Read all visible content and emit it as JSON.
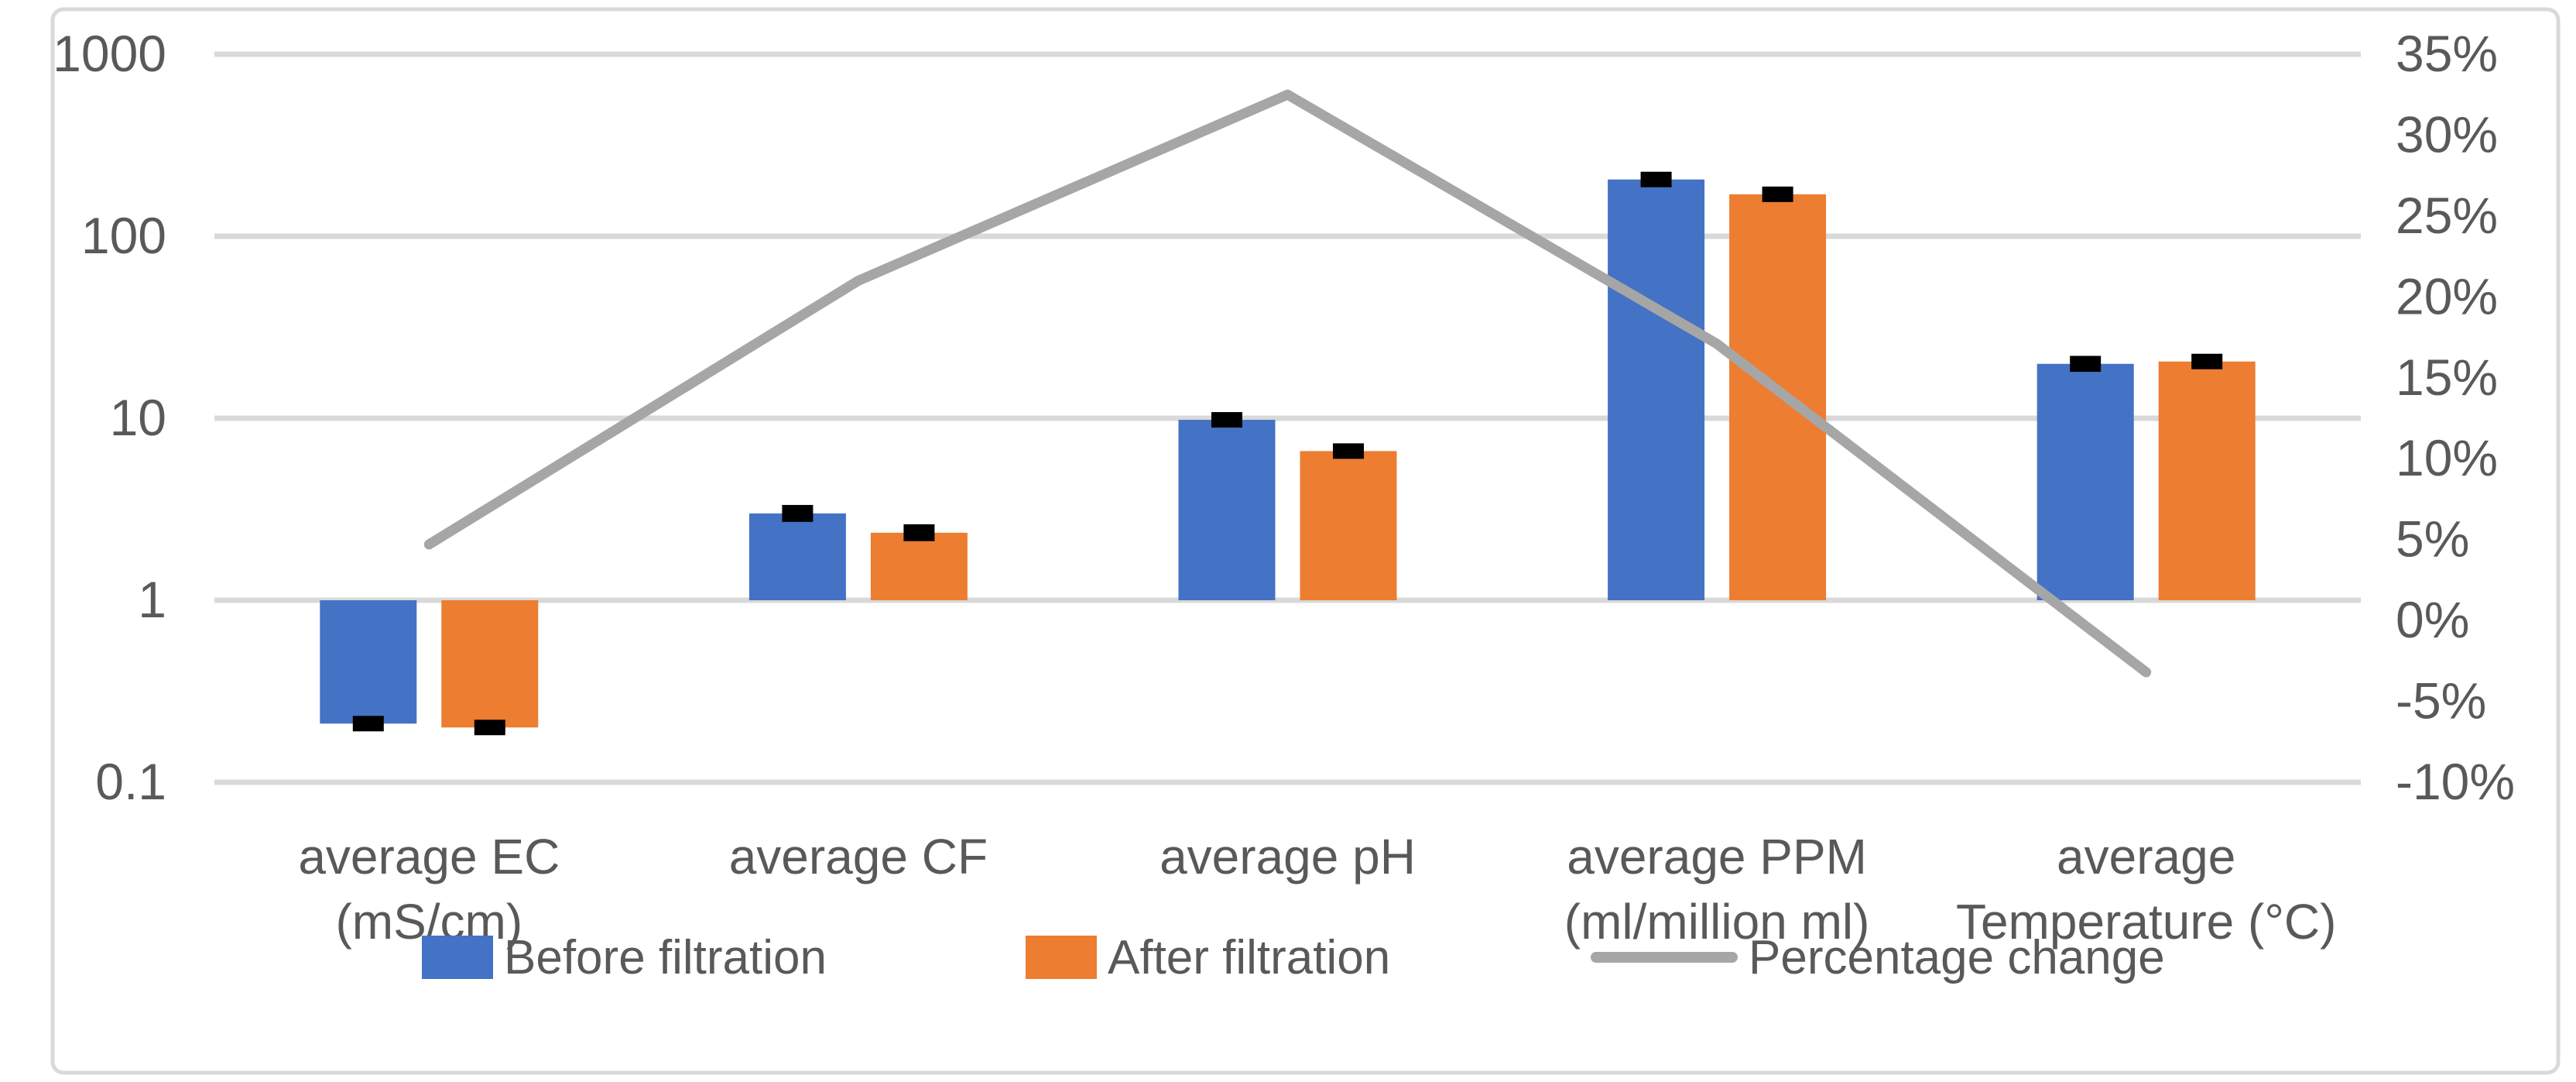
{
  "chart_data": {
    "type": "combo-bar-line",
    "title": "",
    "categories": [
      "average EC (mS/cm)",
      "average CF",
      "average pH",
      "average PPM (ml/million ml)",
      "average Temperature (°C)"
    ],
    "category_label_lines": [
      [
        "average EC",
        "(mS/cm)"
      ],
      [
        "average CF"
      ],
      [
        "average pH"
      ],
      [
        "average PPM",
        "(ml/million ml)"
      ],
      [
        "average",
        "Temperature (°C)"
      ]
    ],
    "series": [
      {
        "name": "Before filtration",
        "type": "bar",
        "color": "#4472C4",
        "axis": "left",
        "values": [
          0.21,
          3.0,
          9.8,
          205,
          19.9
        ],
        "error": [
          0.02,
          0.32,
          0.9,
          20,
          2.0
        ]
      },
      {
        "name": "After filtration",
        "type": "bar",
        "color": "#ED7D31",
        "axis": "left",
        "values": [
          0.2,
          2.35,
          6.6,
          170,
          20.5
        ],
        "error": [
          0.015,
          0.25,
          0.6,
          14,
          1.8
        ]
      },
      {
        "name": "Percentage change",
        "type": "line",
        "color": "#A6A6A6",
        "axis": "right",
        "values_percent": [
          4.7,
          21,
          32.5,
          17.1,
          -3.2
        ]
      }
    ],
    "left_axis": {
      "scale": "log",
      "min": 0.1,
      "max": 1000,
      "bar_base": 1,
      "ticks": [
        "1000",
        "100",
        "10",
        "1",
        "0.1"
      ],
      "tick_values": [
        1000,
        100,
        10,
        1,
        0.1
      ]
    },
    "right_axis": {
      "unit": "%",
      "min": -10,
      "max": 35,
      "step": 5,
      "ticks": [
        "35%",
        "30%",
        "25%",
        "20%",
        "15%",
        "10%",
        "5%",
        "0%",
        "-5%",
        "-10%"
      ],
      "tick_values": [
        35,
        30,
        25,
        20,
        15,
        10,
        5,
        0,
        -5,
        -10
      ]
    },
    "gridlines": "horizontal-major-left-axis",
    "legend_position": "bottom",
    "colors": {
      "error_bar": "#000000",
      "gridline": "#D9D9D9",
      "axis_text": "#595959",
      "chart_border": "#D9D9D9",
      "background": "#FFFFFF"
    }
  },
  "legend": {
    "items": [
      {
        "label": "Before filtration",
        "color": "#4472C4",
        "swatch": "bar"
      },
      {
        "label": "After filtration",
        "color": "#ED7D31",
        "swatch": "bar"
      },
      {
        "label": "Percentage change",
        "color": "#A6A6A6",
        "swatch": "line"
      }
    ]
  }
}
